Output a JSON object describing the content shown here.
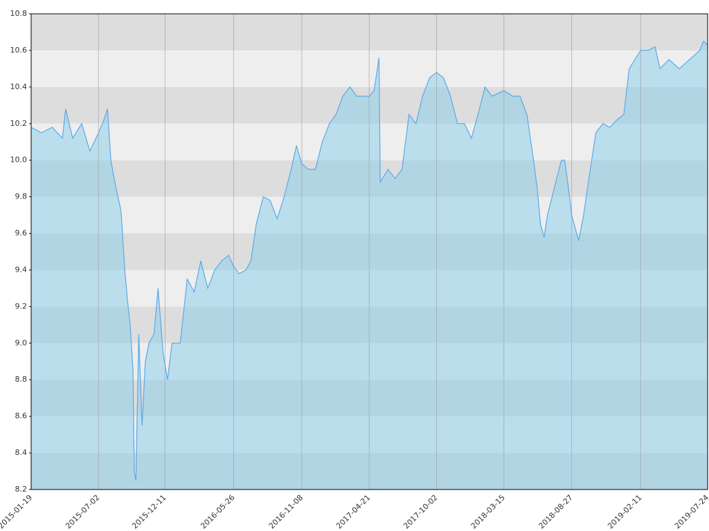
{
  "chart_data": {
    "type": "area",
    "x": [
      "2015-01-19",
      "2015-02-13",
      "2015-03-11",
      "2015-04-05",
      "2015-04-13",
      "2015-04-30",
      "2015-05-22",
      "2015-06-11",
      "2015-07-02",
      "2015-07-15",
      "2015-07-24",
      "2015-08-01",
      "2015-08-09",
      "2015-08-26",
      "2015-09-04",
      "2015-09-12",
      "2015-09-17",
      "2015-09-24",
      "2015-09-27",
      "2015-10-01",
      "2015-10-08",
      "2015-10-16",
      "2015-10-24",
      "2015-11-02",
      "2015-11-14",
      "2015-11-24",
      "2015-12-06",
      "2015-12-17",
      "2015-12-28",
      "2016-01-17",
      "2016-02-03",
      "2016-02-20",
      "2016-03-07",
      "2016-03-24",
      "2016-04-10",
      "2016-04-27",
      "2016-05-14",
      "2016-05-26",
      "2016-06-08",
      "2016-06-25",
      "2016-07-07",
      "2016-07-20",
      "2016-08-06",
      "2016-08-23",
      "2016-09-09",
      "2016-09-26",
      "2016-10-13",
      "2016-10-26",
      "2016-11-08",
      "2016-11-24",
      "2016-12-11",
      "2016-12-28",
      "2017-01-14",
      "2017-01-30",
      "2017-02-16",
      "2017-03-05",
      "2017-03-22",
      "2017-04-21",
      "2017-05-03",
      "2017-05-15",
      "2017-05-18",
      "2017-06-06",
      "2017-06-23",
      "2017-07-10",
      "2017-07-27",
      "2017-08-13",
      "2017-08-29",
      "2017-09-15",
      "2017-10-02",
      "2017-10-19",
      "2017-11-05",
      "2017-11-22",
      "2017-12-09",
      "2017-12-26",
      "2018-01-11",
      "2018-01-28",
      "2018-02-14",
      "2018-03-15",
      "2018-04-06",
      "2018-04-23",
      "2018-05-10",
      "2018-05-26",
      "2018-06-04",
      "2018-06-12",
      "2018-06-21",
      "2018-06-29",
      "2018-07-16",
      "2018-08-02",
      "2018-08-10",
      "2018-08-19",
      "2018-08-27",
      "2018-09-13",
      "2018-09-25",
      "2018-10-08",
      "2018-10-25",
      "2018-11-11",
      "2018-11-28",
      "2018-12-15",
      "2019-01-01",
      "2019-01-14",
      "2019-02-11",
      "2019-03-01",
      "2019-03-18",
      "2019-03-30",
      "2019-04-21",
      "2019-05-16",
      "2019-06-10",
      "2019-07-05",
      "2019-07-14",
      "2019-07-24"
    ],
    "values": [
      10.18,
      10.15,
      10.18,
      10.12,
      10.28,
      10.12,
      10.2,
      10.05,
      10.15,
      10.22,
      10.28,
      10.0,
      9.9,
      9.72,
      9.4,
      9.2,
      9.1,
      8.85,
      8.3,
      8.25,
      9.05,
      8.55,
      8.9,
      9.0,
      9.05,
      9.3,
      8.95,
      8.8,
      9.0,
      9.0,
      9.35,
      9.28,
      9.45,
      9.3,
      9.4,
      9.45,
      9.48,
      9.42,
      9.38,
      9.4,
      9.45,
      9.65,
      9.8,
      9.78,
      9.68,
      9.8,
      9.95,
      10.08,
      9.98,
      9.95,
      9.95,
      10.1,
      10.2,
      10.25,
      10.35,
      10.4,
      10.35,
      10.35,
      10.38,
      10.56,
      9.88,
      9.95,
      9.9,
      9.95,
      10.25,
      10.2,
      10.35,
      10.45,
      10.48,
      10.45,
      10.35,
      10.2,
      10.2,
      10.12,
      10.25,
      10.4,
      10.35,
      10.38,
      10.35,
      10.35,
      10.25,
      10.0,
      9.85,
      9.65,
      9.58,
      9.7,
      9.85,
      10.0,
      10.0,
      9.85,
      9.7,
      9.56,
      9.7,
      9.9,
      10.15,
      10.2,
      10.18,
      10.22,
      10.25,
      10.5,
      10.6,
      10.6,
      10.62,
      10.5,
      10.55,
      10.5,
      10.55,
      10.6,
      10.65,
      10.63
    ],
    "color": "#5aa9e6",
    "xlim": [
      "2015-01-19",
      "2019-07-24"
    ],
    "xticks": [
      "2015-01-19",
      "2015-07-02",
      "2015-12-11",
      "2016-05-26",
      "2016-11-08",
      "2017-04-21",
      "2017-10-02",
      "2018-03-15",
      "2018-08-27",
      "2019-02-11",
      "2019-07-24"
    ],
    "ylim": [
      8.2,
      10.8
    ],
    "yticks": [
      8.2,
      8.4,
      8.6,
      8.8,
      {
        "value": 9,
        "label": "9.0"
      },
      9.2,
      9.4,
      9.6,
      9.8,
      {
        "value": 10,
        "label": "10.0"
      },
      10.2,
      10.4,
      10.6,
      10.8
    ],
    "band_colors": [
      "#dddddd",
      "#eeeeee"
    ],
    "grid": true
  }
}
